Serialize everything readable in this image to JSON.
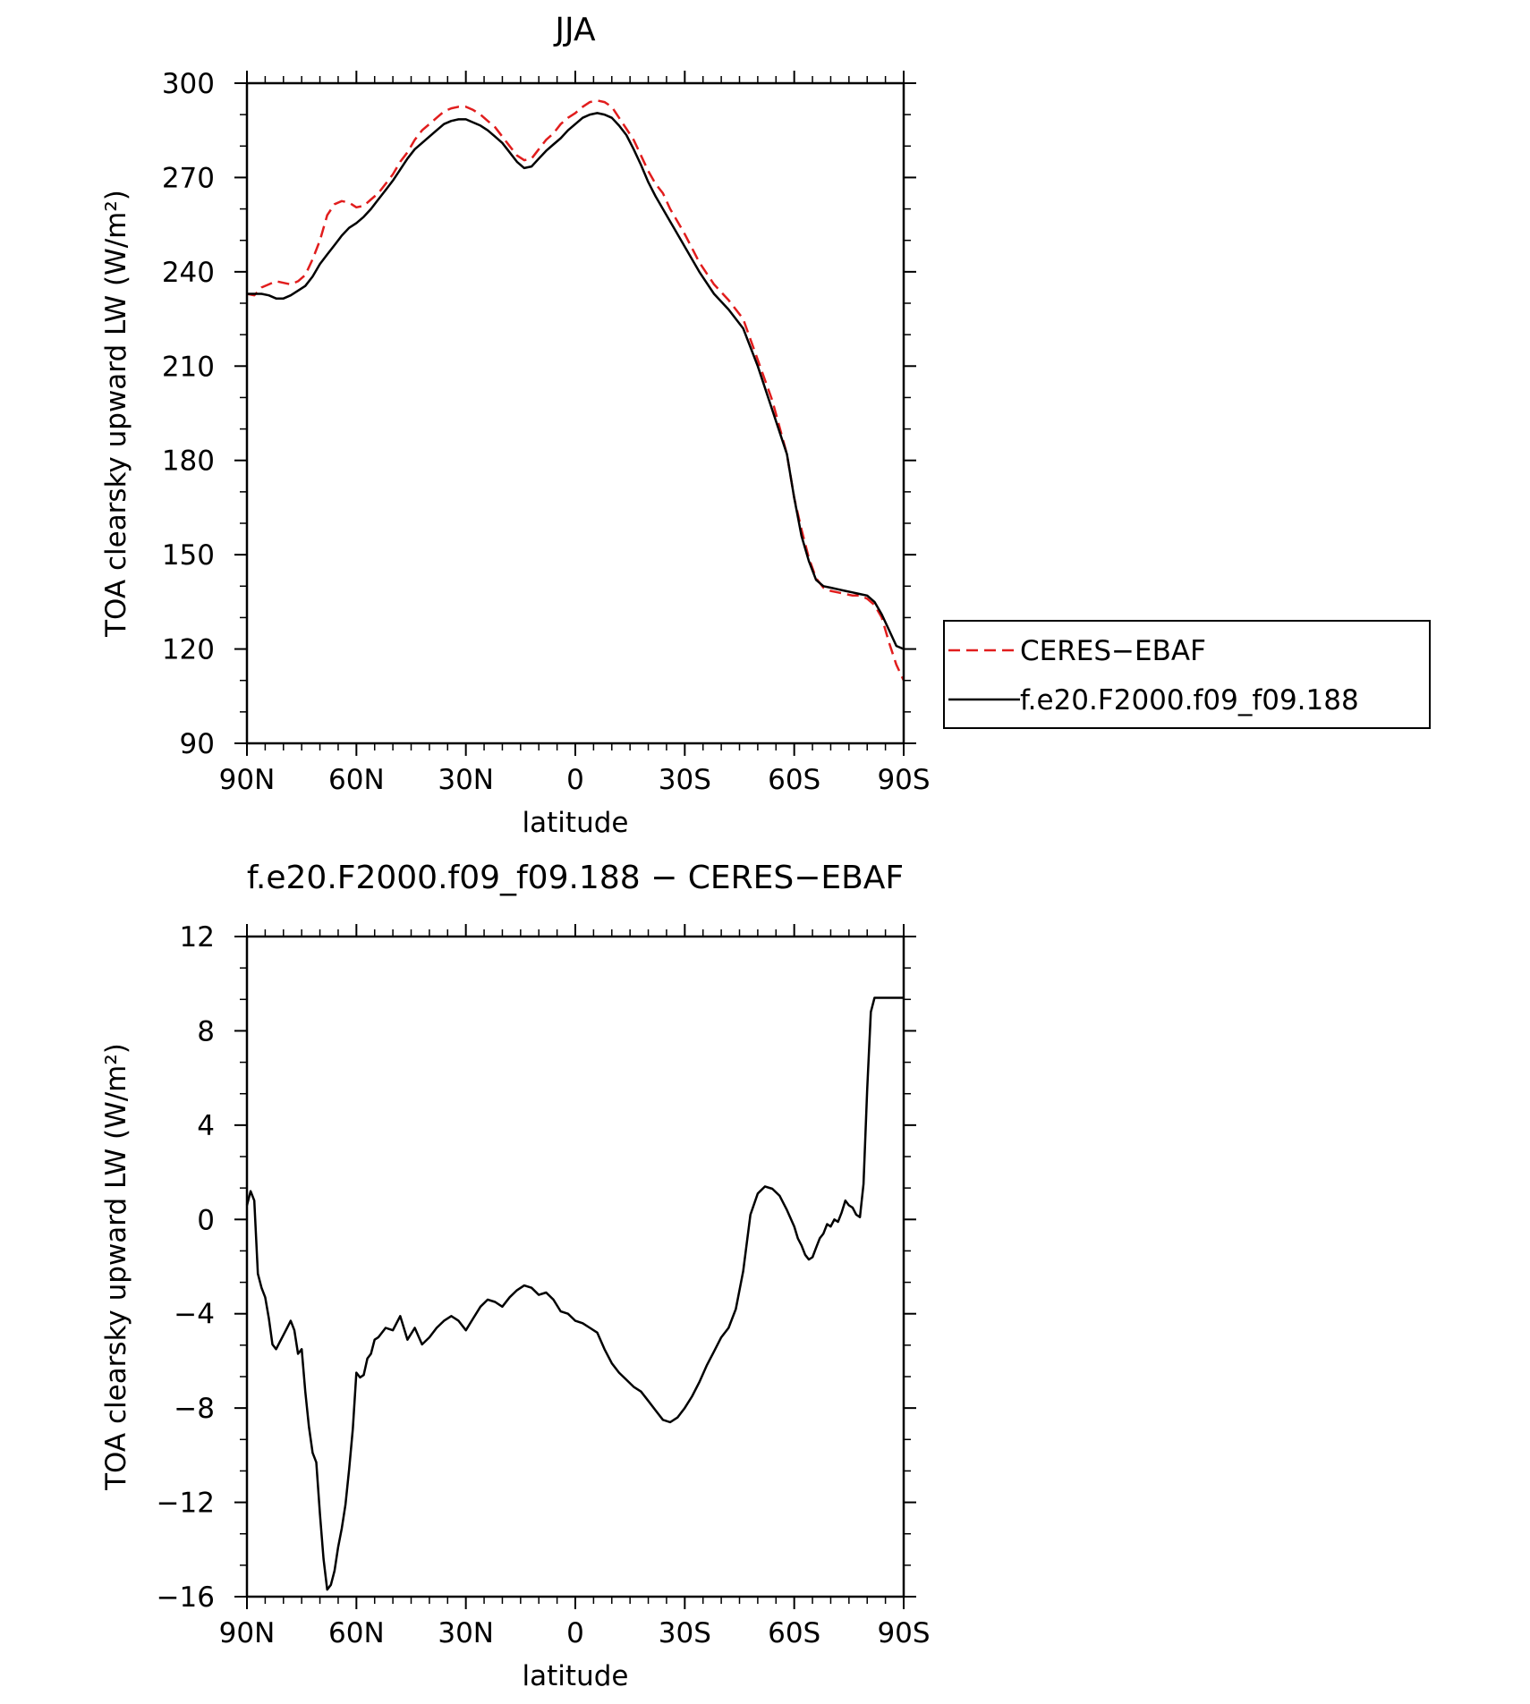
{
  "chart_data": [
    {
      "type": "line",
      "title": "JJA",
      "xlabel": "latitude",
      "ylabel": "TOA clearsky upward LW (W/m²)",
      "ylim": [
        90,
        300
      ],
      "yticks": [
        90,
        120,
        150,
        180,
        210,
        240,
        270,
        300
      ],
      "xlim": [
        90,
        -90
      ],
      "xticks": [
        90,
        60,
        30,
        0,
        -30,
        -60,
        -90
      ],
      "xtick_labels": [
        "90N",
        "60N",
        "30N",
        "0",
        "30S",
        "60S",
        "90S"
      ],
      "legend_position": "right",
      "series": [
        {
          "name": "CERES−EBAF",
          "color": "#e11d1d",
          "style": "dashed",
          "x": [
            90,
            88,
            86,
            84,
            82,
            80,
            78,
            76,
            74,
            72,
            70,
            68,
            66,
            64,
            62,
            60,
            58,
            56,
            54,
            52,
            50,
            48,
            46,
            44,
            42,
            40,
            38,
            36,
            34,
            32,
            30,
            28,
            26,
            24,
            22,
            20,
            18,
            16,
            14,
            12,
            10,
            8,
            6,
            4,
            2,
            0,
            -2,
            -4,
            -6,
            -8,
            -10,
            -12,
            -14,
            -16,
            -18,
            -20,
            -22,
            -24,
            -26,
            -28,
            -30,
            -34,
            -38,
            -42,
            -46,
            -50,
            -54,
            -58,
            -60,
            -62,
            -64,
            -66,
            -68,
            -70,
            -72,
            -74,
            -76,
            -78,
            -80,
            -82,
            -84,
            -86,
            -88,
            -90
          ],
          "y": [
            233,
            232.5,
            235,
            236,
            237,
            236.5,
            236,
            237,
            239,
            244,
            250,
            258,
            261.5,
            262.5,
            262,
            260.5,
            261,
            263,
            265,
            268,
            271,
            275,
            278,
            282,
            285,
            287,
            289,
            291,
            292,
            292.5,
            292.5,
            291.5,
            290,
            288,
            286,
            283,
            280,
            277,
            275.5,
            276,
            279,
            282,
            284,
            287,
            289,
            290.5,
            292.5,
            294,
            294.5,
            294,
            292.5,
            289,
            285.5,
            282,
            277,
            272,
            268,
            265,
            260,
            256,
            252,
            243,
            236,
            231,
            225,
            212,
            199,
            182,
            168,
            158,
            149,
            142.5,
            139.5,
            138.5,
            138,
            137.5,
            137,
            137,
            136,
            134,
            130,
            122,
            115,
            110
          ]
        },
        {
          "name": "f.e20.F2000.f09_f09.188",
          "color": "#000000",
          "style": "solid",
          "x": [
            90,
            88,
            86,
            84,
            82,
            80,
            78,
            76,
            74,
            72,
            70,
            68,
            66,
            64,
            62,
            60,
            58,
            56,
            54,
            52,
            50,
            48,
            46,
            44,
            42,
            40,
            38,
            36,
            34,
            32,
            30,
            28,
            26,
            24,
            22,
            20,
            18,
            16,
            14,
            12,
            10,
            8,
            6,
            4,
            2,
            0,
            -2,
            -4,
            -6,
            -8,
            -10,
            -12,
            -14,
            -16,
            -18,
            -20,
            -22,
            -24,
            -26,
            -28,
            -30,
            -34,
            -38,
            -42,
            -46,
            -50,
            -54,
            -58,
            -60,
            -62,
            -64,
            -66,
            -68,
            -70,
            -72,
            -74,
            -76,
            -78,
            -80,
            -82,
            -84,
            -86,
            -88,
            -90
          ],
          "y": [
            233,
            233,
            233,
            232.5,
            231.5,
            231.5,
            232.5,
            234,
            235.5,
            238.5,
            242.5,
            245.5,
            248.5,
            251.5,
            254,
            255.5,
            257.5,
            260,
            263,
            266,
            269,
            272.5,
            276,
            279,
            281,
            283,
            285,
            287,
            288,
            288.5,
            288.5,
            287.5,
            286.5,
            285,
            283,
            281,
            278,
            275,
            273,
            273.5,
            276,
            278.5,
            280.5,
            282.5,
            285,
            287,
            289,
            290,
            290.5,
            290,
            289,
            286.5,
            283.5,
            279,
            274,
            268.5,
            264,
            260,
            256,
            252,
            248,
            240,
            233,
            228,
            222,
            210,
            196,
            182,
            168,
            156,
            148,
            142,
            140,
            139.5,
            139,
            138.5,
            138,
            137.5,
            137,
            135,
            131,
            126,
            121,
            120
          ]
        }
      ]
    },
    {
      "type": "line",
      "title": "f.e20.F2000.f09_f09.188 − CERES−EBAF",
      "xlabel": "latitude",
      "ylabel": "TOA clearsky upward LW (W/m²)",
      "ylim": [
        -16,
        12
      ],
      "yticks": [
        -16,
        -12,
        -8,
        -4,
        0,
        4,
        8,
        12
      ],
      "ytick_labels": [
        "−16",
        "−12",
        "−8",
        "−4",
        "0",
        "4",
        "8",
        "12"
      ],
      "xlim": [
        90,
        -90
      ],
      "xticks": [
        90,
        60,
        30,
        0,
        -30,
        -60,
        -90
      ],
      "xtick_labels": [
        "90N",
        "60N",
        "30N",
        "0",
        "30S",
        "60S",
        "90S"
      ],
      "series": [
        {
          "name": "",
          "color": "#000000",
          "style": "solid",
          "x": [
            90,
            89,
            88,
            87,
            86,
            85,
            84,
            83,
            82,
            81,
            80,
            79,
            78,
            77,
            76,
            75,
            74,
            73,
            72,
            71,
            70,
            69,
            68,
            67,
            66,
            65,
            64,
            63,
            62,
            61,
            60,
            59,
            58,
            57,
            56,
            55,
            54,
            52,
            50,
            48,
            46,
            44,
            42,
            40,
            38,
            36,
            34,
            32,
            30,
            28,
            26,
            24,
            22,
            20,
            18,
            16,
            14,
            12,
            10,
            8,
            6,
            4,
            2,
            0,
            -2,
            -4,
            -6,
            -8,
            -10,
            -12,
            -14,
            -16,
            -18,
            -20,
            -22,
            -24,
            -26,
            -28,
            -30,
            -32,
            -34,
            -36,
            -38,
            -40,
            -42,
            -44,
            -46,
            -48,
            -50,
            -52,
            -54,
            -56,
            -58,
            -60,
            -61,
            -62,
            -63,
            -64,
            -65,
            -66,
            -67,
            -68,
            -69,
            -70,
            -71,
            -72,
            -73,
            -74,
            -75,
            -76,
            -77,
            -78,
            -79,
            -80,
            -81,
            -82,
            -83,
            -84,
            -85,
            -86,
            -87,
            -88,
            -89,
            -90
          ],
          "y": [
            0.6,
            1.2,
            0.8,
            -2.3,
            -2.9,
            -3.3,
            -4.2,
            -5.3,
            -5.5,
            -5.2,
            -4.9,
            -4.6,
            -4.3,
            -4.7,
            -5.7,
            -5.5,
            -7.3,
            -8.8,
            -9.9,
            -10.3,
            -12.5,
            -14.4,
            -15.7,
            -15.5,
            -14.9,
            -13.9,
            -13.1,
            -12.1,
            -10.6,
            -8.9,
            -6.5,
            -6.7,
            -6.6,
            -5.9,
            -5.7,
            -5.1,
            -5.0,
            -4.6,
            -4.7,
            -4.1,
            -5.1,
            -4.6,
            -5.3,
            -5.0,
            -4.6,
            -4.3,
            -4.1,
            -4.3,
            -4.7,
            -4.2,
            -3.7,
            -3.4,
            -3.5,
            -3.7,
            -3.3,
            -3.0,
            -2.8,
            -2.9,
            -3.2,
            -3.1,
            -3.4,
            -3.9,
            -4.0,
            -4.3,
            -4.4,
            -4.6,
            -4.8,
            -5.5,
            -6.1,
            -6.5,
            -6.8,
            -7.1,
            -7.3,
            -7.7,
            -8.1,
            -8.5,
            -8.6,
            -8.4,
            -8.0,
            -7.5,
            -6.9,
            -6.2,
            -5.6,
            -5.0,
            -4.6,
            -3.8,
            -2.2,
            0.2,
            1.1,
            1.4,
            1.3,
            1.0,
            0.4,
            -0.3,
            -0.8,
            -1.1,
            -1.5,
            -1.7,
            -1.6,
            -1.2,
            -0.8,
            -0.6,
            -0.2,
            -0.3,
            0.0,
            -0.1,
            0.3,
            0.8,
            0.6,
            0.5,
            0.2,
            0.1,
            1.5,
            5.5,
            8.8,
            9.4,
            9.4,
            9.4,
            9.4,
            9.4,
            9.4,
            9.4,
            9.4,
            9.4
          ]
        }
      ]
    }
  ]
}
